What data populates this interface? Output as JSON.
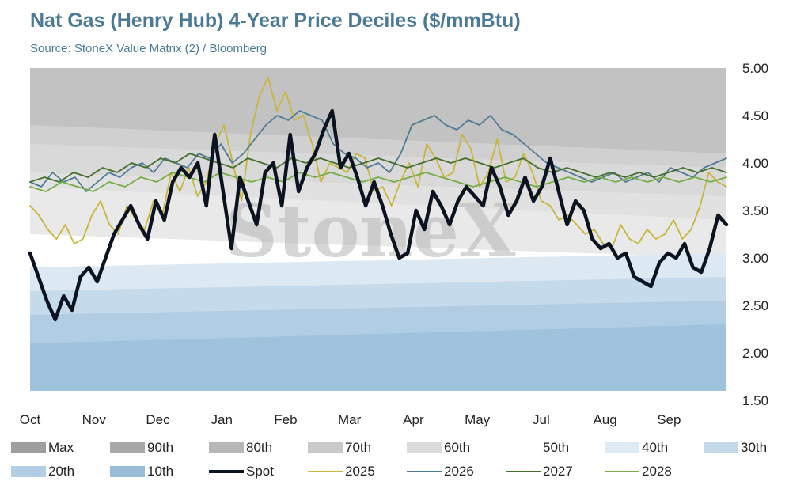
{
  "title": "Nat Gas (Henry Hub) 4-Year Price Deciles ($/mmBtu)",
  "subtitle": "Source: StoneX Value Matrix (2) / Bloomberg",
  "watermark": "StoneX",
  "chart_data": {
    "type": "area",
    "title": "Nat Gas (Henry Hub) 4-Year Price Deciles ($/mmBtu)",
    "x_ticks": [
      "Oct",
      "Nov",
      "Dec",
      "Jan",
      "Feb",
      "Mar",
      "Apr",
      "May",
      "Jul",
      "Aug",
      "Sep"
    ],
    "y_ticks": [
      "5.00",
      "4.50",
      "4.00",
      "3.50",
      "3.00",
      "2.50",
      "2.00",
      "1.50"
    ],
    "ylim": [
      1.5,
      5.0
    ],
    "y_axis_side": "right",
    "legend_position": "bottom",
    "bands": [
      {
        "name": "Max",
        "color": "#c2c2c2",
        "y": [
          5.0,
          5.0
        ]
      },
      {
        "name": "90th",
        "color": "#d0d0d0",
        "y": [
          4.4,
          4.1
        ]
      },
      {
        "name": "80th",
        "color": "#d9d9d9",
        "y": [
          4.2,
          3.95
        ]
      },
      {
        "name": "70th",
        "color": "#e1e1e1",
        "y": [
          3.9,
          3.65
        ]
      },
      {
        "name": "60th",
        "color": "#e9e9e9",
        "y": [
          3.75,
          3.4
        ]
      },
      {
        "name": "50th",
        "color": "#ffffff",
        "y": [
          3.25,
          3.0
        ]
      },
      {
        "name": "40th",
        "color": "#dce8f2",
        "y": [
          2.9,
          3.05
        ]
      },
      {
        "name": "30th",
        "color": "#c5daea",
        "y": [
          2.65,
          2.8
        ]
      },
      {
        "name": "20th",
        "color": "#b0cde3",
        "y": [
          2.4,
          2.55
        ]
      },
      {
        "name": "10th",
        "color": "#9fc2dd",
        "y": [
          2.1,
          2.3
        ]
      }
    ],
    "series": [
      {
        "name": "Spot",
        "color": "#0b1220",
        "width": 4.5,
        "values": [
          3.05,
          2.8,
          2.55,
          2.35,
          2.6,
          2.45,
          2.8,
          2.9,
          2.75,
          3.0,
          3.25,
          3.4,
          3.55,
          3.35,
          3.2,
          3.6,
          3.4,
          3.8,
          3.95,
          3.85,
          4.0,
          3.55,
          4.3,
          3.7,
          3.1,
          3.85,
          3.6,
          3.35,
          3.9,
          4.0,
          3.55,
          4.3,
          3.7,
          3.95,
          4.1,
          4.35,
          4.55,
          3.95,
          4.1,
          3.85,
          3.55,
          3.8,
          3.55,
          3.25,
          3.0,
          3.05,
          3.5,
          3.3,
          3.7,
          3.55,
          3.35,
          3.6,
          3.75,
          3.65,
          3.55,
          3.95,
          3.75,
          3.45,
          3.6,
          3.85,
          3.6,
          3.75,
          4.05,
          3.7,
          3.35,
          3.6,
          3.5,
          3.2,
          3.1,
          3.15,
          3.0,
          3.05,
          2.8,
          2.75,
          2.7,
          2.95,
          3.05,
          3.0,
          3.15,
          2.9,
          2.85,
          3.1,
          3.45,
          3.35
        ]
      },
      {
        "name": "2025",
        "color": "#c9b53b",
        "width": 1.8,
        "values": [
          3.55,
          3.45,
          3.3,
          3.2,
          3.35,
          3.15,
          3.2,
          3.45,
          3.6,
          3.35,
          3.25,
          3.55,
          3.4,
          3.3,
          3.6,
          3.45,
          3.9,
          3.7,
          3.95,
          3.65,
          3.8,
          4.2,
          4.4,
          4.0,
          3.6,
          4.3,
          4.7,
          4.9,
          4.55,
          4.75,
          4.45,
          4.5,
          4.2,
          3.8,
          4.0,
          3.95,
          3.9,
          4.1,
          4.05,
          3.7,
          3.75,
          3.55,
          3.8,
          4.0,
          3.75,
          4.2,
          4.05,
          3.85,
          3.9,
          4.3,
          4.15,
          3.75,
          3.9,
          4.25,
          3.8,
          3.85,
          4.1,
          3.9,
          3.6,
          3.55,
          3.4,
          3.45,
          3.35,
          3.25,
          3.3,
          3.15,
          3.1,
          3.35,
          3.2,
          3.15,
          3.3,
          3.2,
          3.25,
          3.4,
          3.2,
          3.3,
          3.55,
          3.9,
          3.8,
          3.75
        ]
      },
      {
        "name": "2026",
        "color": "#4f7b95",
        "width": 1.8,
        "values": [
          3.8,
          3.75,
          3.9,
          3.8,
          3.85,
          3.7,
          3.8,
          3.9,
          3.85,
          3.95,
          4.0,
          3.9,
          4.05,
          4.0,
          3.95,
          4.1,
          4.05,
          4.2,
          4.0,
          4.1,
          4.25,
          4.4,
          4.5,
          4.45,
          4.55,
          4.5,
          4.45,
          4.2,
          4.1,
          4.05,
          3.95,
          4.0,
          3.9,
          4.1,
          4.4,
          4.45,
          4.5,
          4.4,
          4.35,
          4.45,
          4.4,
          4.5,
          4.35,
          4.3,
          4.2,
          4.1,
          4.0,
          3.95,
          3.9,
          3.85,
          3.8,
          3.85,
          3.9,
          3.8,
          3.85,
          3.9,
          3.8,
          3.95,
          3.9,
          3.85,
          3.95,
          4.0,
          4.05
        ]
      },
      {
        "name": "2027",
        "color": "#456f2d",
        "width": 1.8,
        "values": [
          3.8,
          3.85,
          3.8,
          3.9,
          3.85,
          3.95,
          3.9,
          4.0,
          3.95,
          4.05,
          4.0,
          4.1,
          4.05,
          4.0,
          3.95,
          4.05,
          4.0,
          3.95,
          4.05,
          4.0,
          4.05,
          4.0,
          3.95,
          4.0,
          4.05,
          4.0,
          3.95,
          4.0,
          4.05,
          4.0,
          4.05,
          4.0,
          3.95,
          4.0,
          4.05,
          3.95,
          3.9,
          3.95,
          3.9,
          3.85,
          3.9,
          3.85,
          3.9,
          3.85,
          3.9,
          3.95,
          3.9,
          3.95,
          3.9
        ]
      },
      {
        "name": "2028",
        "color": "#76ad47",
        "width": 1.8,
        "values": [
          3.75,
          3.7,
          3.8,
          3.75,
          3.7,
          3.8,
          3.75,
          3.85,
          3.8,
          3.9,
          3.85,
          3.8,
          3.9,
          3.85,
          3.8,
          3.85,
          3.8,
          3.9,
          3.85,
          3.9,
          3.85,
          3.8,
          3.85,
          3.8,
          3.85,
          3.9,
          3.85,
          3.8,
          3.75,
          3.8,
          3.85,
          3.8,
          3.75,
          3.8,
          3.85,
          3.8,
          3.85,
          3.8,
          3.85,
          3.8,
          3.85,
          3.8,
          3.85,
          3.8,
          3.85
        ]
      }
    ]
  },
  "legend": [
    {
      "label": "Max",
      "kind": "box",
      "color": "#9e9e9e"
    },
    {
      "label": "90th",
      "kind": "box",
      "color": "#a9a9a9"
    },
    {
      "label": "80th",
      "kind": "box",
      "color": "#b7b7b7"
    },
    {
      "label": "70th",
      "kind": "box",
      "color": "#c9c9c9"
    },
    {
      "label": "60th",
      "kind": "box",
      "color": "#dcdcdc"
    },
    {
      "label": "50th",
      "kind": "box",
      "color": "#ffffff"
    },
    {
      "label": "40th",
      "kind": "box",
      "color": "#deebf5"
    },
    {
      "label": "30th",
      "kind": "box",
      "color": "#c3d9ea"
    },
    {
      "label": "20th",
      "kind": "box",
      "color": "#b2cee4"
    },
    {
      "label": "10th",
      "kind": "box",
      "color": "#97bddb"
    },
    {
      "label": "Spot",
      "kind": "line",
      "color": "#0b1220"
    },
    {
      "label": "2025",
      "kind": "line",
      "color": "#c9b53b"
    },
    {
      "label": "2026",
      "kind": "line",
      "color": "#4f7b95"
    },
    {
      "label": "2027",
      "kind": "line",
      "color": "#456f2d"
    },
    {
      "label": "2028",
      "kind": "line",
      "color": "#76ad47"
    }
  ]
}
